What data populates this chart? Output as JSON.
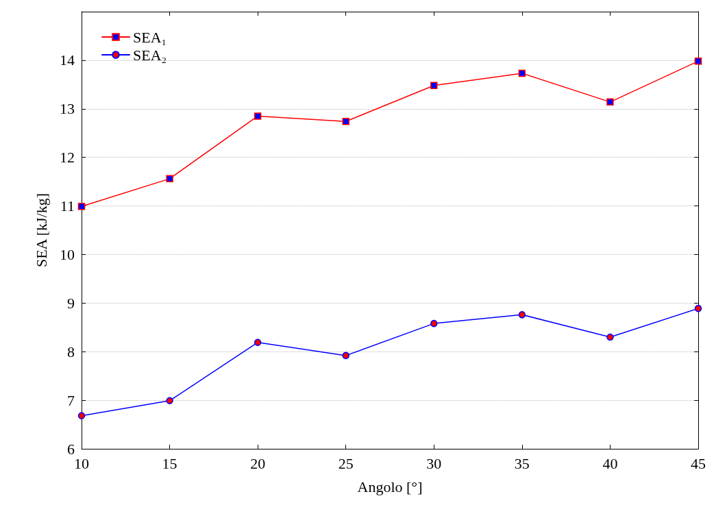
{
  "chart_data": {
    "type": "line",
    "xlabel": "Angolo [°]",
    "ylabel": "SEA [kJ/kg]",
    "x": [
      10,
      15,
      20,
      25,
      30,
      35,
      40,
      45
    ],
    "series": [
      {
        "name": "SEA₁",
        "color": "#ff0000",
        "marker": "square",
        "values": [
          10.99,
          11.56,
          12.85,
          12.74,
          13.48,
          13.73,
          13.14,
          13.98
        ]
      },
      {
        "name": "SEA₂",
        "color": "#0000ff",
        "marker": "circle",
        "values": [
          6.68,
          6.99,
          8.19,
          7.92,
          8.58,
          8.76,
          8.3,
          8.89
        ]
      }
    ],
    "xlim": [
      10,
      45
    ],
    "xticks": [
      10,
      15,
      20,
      25,
      30,
      35,
      40,
      45
    ],
    "ylim": [
      6,
      15
    ],
    "yticks": [
      6,
      7,
      8,
      9,
      10,
      11,
      12,
      13,
      14
    ],
    "grid": "y",
    "legend": "top left",
    "line_style": "solid"
  }
}
